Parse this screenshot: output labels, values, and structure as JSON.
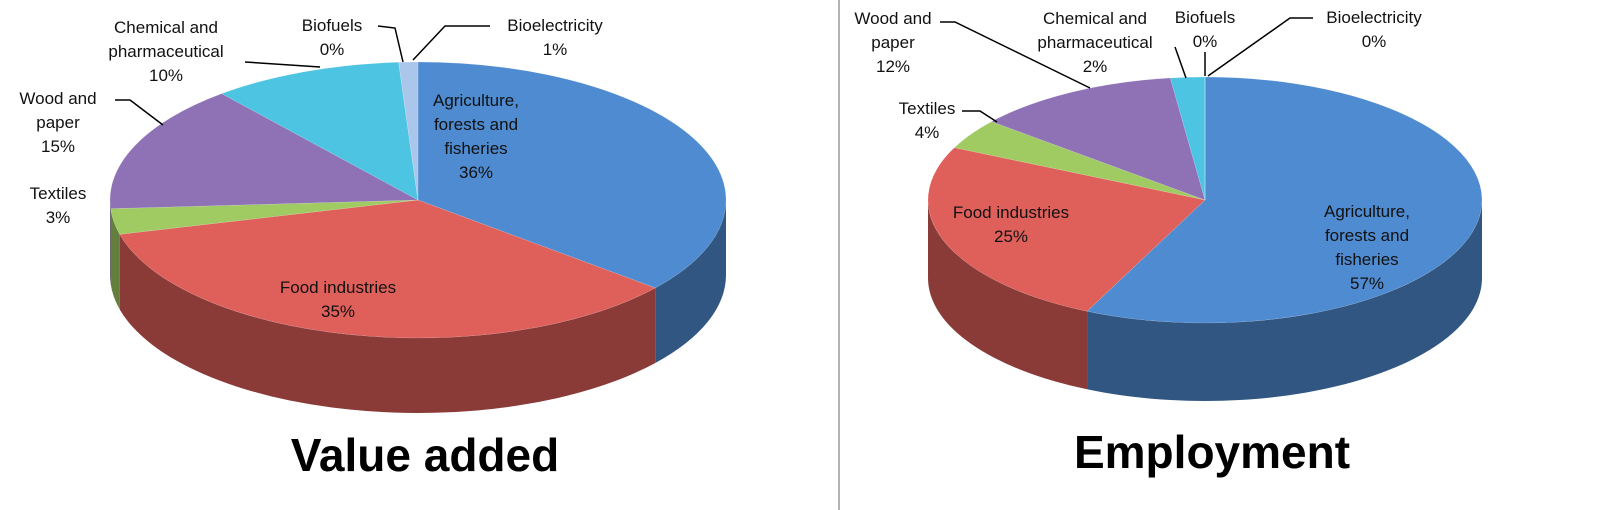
{
  "chart_data": [
    {
      "type": "pie",
      "title": "Value added",
      "categories": [
        "Agriculture, forests and fisheries",
        "Food industries",
        "Textiles",
        "Wood and paper",
        "Chemical and pharmaceutical",
        "Biofuels",
        "Bioelectricity"
      ],
      "values": [
        36,
        35,
        3,
        15,
        10,
        0,
        1
      ],
      "value_labels": [
        "36%",
        "35%",
        "3%",
        "15%",
        "10%",
        "0%",
        "1%"
      ],
      "colors": [
        "#4f8bd0",
        "#df5f5b",
        "#9fcb62",
        "#8e72b5",
        "#4cc4e2",
        "#f3a374",
        "#aac6ea"
      ]
    },
    {
      "type": "pie",
      "title": "Employment",
      "categories": [
        "Agriculture, forests and fisheries",
        "Food industries",
        "Textiles",
        "Wood and paper",
        "Chemical and pharmaceutical",
        "Biofuels",
        "Bioelectricity"
      ],
      "values": [
        57,
        25,
        4,
        12,
        2,
        0,
        0
      ],
      "value_labels": [
        "57%",
        "25%",
        "4%",
        "12%",
        "2%",
        "0%",
        "0%"
      ],
      "colors": [
        "#4f8bd0",
        "#df5f5b",
        "#9fcb62",
        "#8e72b5",
        "#4cc4e2",
        "#f3a374",
        "#aac6ea"
      ]
    }
  ]
}
